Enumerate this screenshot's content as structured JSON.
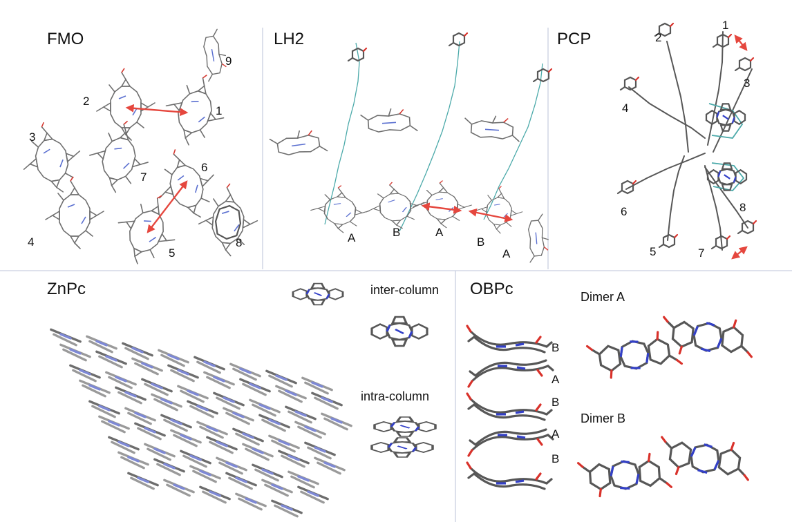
{
  "panels": {
    "fmo": {
      "title": "FMO",
      "labels": [
        "1",
        "2",
        "3",
        "4",
        "5",
        "6",
        "7",
        "8",
        "9"
      ]
    },
    "lh2": {
      "title": "LH2",
      "labels": [
        "A",
        "B",
        "A",
        "B",
        "A"
      ]
    },
    "pcp": {
      "title": "PCP",
      "labels": [
        "1",
        "2",
        "3",
        "4",
        "5",
        "6",
        "7",
        "8"
      ]
    },
    "znpc": {
      "title": "ZnPc",
      "inter_label": "inter-column",
      "intra_label": "intra-column"
    },
    "obpc": {
      "title": "OBPc",
      "stack_labels": [
        "B",
        "A",
        "B",
        "A",
        "B"
      ],
      "dimer_a": "Dimer A",
      "dimer_b": "Dimer B"
    }
  },
  "colors": {
    "carbon": "#6e6e6e",
    "nitrogen": "#3340c8",
    "oxygen": "#d9322b",
    "arrow": "#e5473e",
    "chain": "#4aa9a9",
    "divider": "#c9cfe0"
  }
}
